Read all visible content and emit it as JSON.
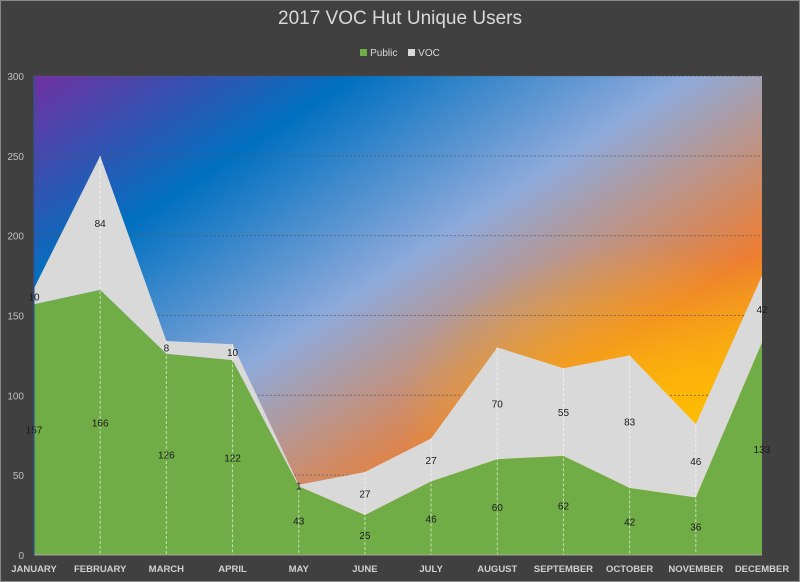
{
  "chart_data": {
    "type": "area",
    "stacked": true,
    "title": "2017 VOC Hut Unique Users",
    "xlabel": "",
    "ylabel": "",
    "categories": [
      "JANUARY",
      "FEBRUARY",
      "MARCH",
      "APRIL",
      "MAY",
      "JUNE",
      "JULY",
      "AUGUST",
      "SEPTEMBER",
      "OCTOBER",
      "NOVEMBER",
      "DECEMBER"
    ],
    "series": [
      {
        "name": "Public",
        "color": "#70ad47",
        "values": [
          157,
          166,
          126,
          122,
          43,
          25,
          46,
          60,
          62,
          42,
          36,
          133
        ]
      },
      {
        "name": "VOC",
        "color": "#d9d9d9",
        "values": [
          10,
          84,
          8,
          10,
          1,
          27,
          27,
          70,
          55,
          83,
          46,
          42
        ]
      }
    ],
    "ylim": [
      0,
      300
    ],
    "yticks": [
      0,
      50,
      100,
      150,
      200,
      250,
      300
    ],
    "grid": true,
    "legend_position": "top",
    "data_labels": true,
    "background": "gradient purple-blue-orange-yellow"
  },
  "colors": {
    "chart_background": "#404040",
    "text": "#d9d9d9",
    "public": "#70ad47",
    "voc": "#d9d9d9"
  }
}
